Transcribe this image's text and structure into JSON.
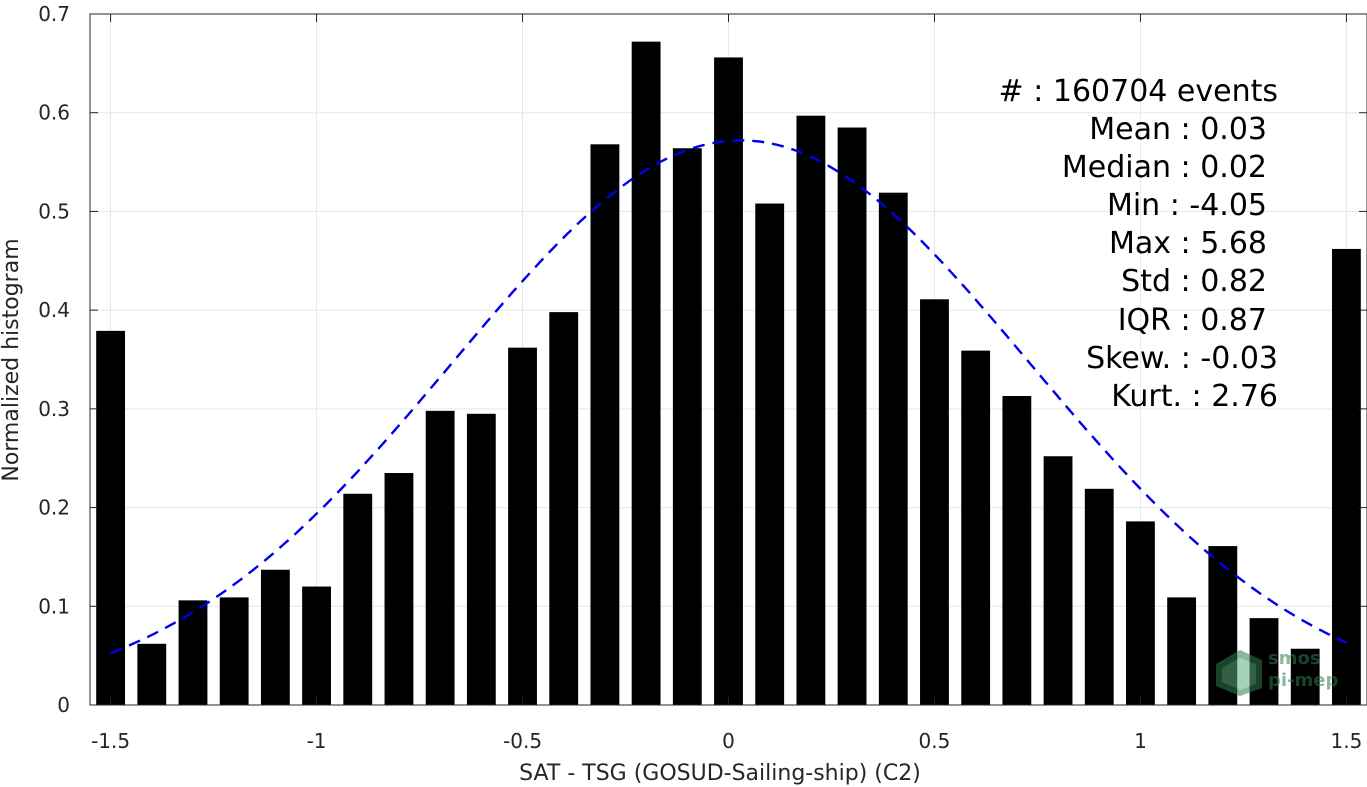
{
  "chart_data": {
    "type": "bar",
    "xlabel": "SAT - TSG (GOSUD-Sailing-ship) (C2)",
    "ylabel": "Normalized histogram",
    "xlim": [
      -1.55,
      1.55
    ],
    "ylim": [
      0,
      0.7
    ],
    "xticks": [
      -1.5,
      -1,
      -0.5,
      0,
      0.5,
      1,
      1.5
    ],
    "xtick_labels": [
      "-1.5",
      "-1",
      "-0.5",
      "0",
      "0.5",
      "1",
      "1.5"
    ],
    "yticks": [
      0,
      0.1,
      0.2,
      0.3,
      0.4,
      0.5,
      0.6,
      0.7
    ],
    "ytick_labels": [
      "0",
      "0.1",
      "0.2",
      "0.3",
      "0.4",
      "0.5",
      "0.6",
      "0.7"
    ],
    "grid": true,
    "bar_color": "#000000",
    "x": [
      -1.5,
      -1.4,
      -1.3,
      -1.2,
      -1.1,
      -1.0,
      -0.9,
      -0.8,
      -0.7,
      -0.6,
      -0.5,
      -0.4,
      -0.3,
      -0.2,
      -0.1,
      0.0,
      0.1,
      0.2,
      0.3,
      0.4,
      0.5,
      0.6,
      0.7,
      0.8,
      0.9,
      1.0,
      1.1,
      1.2,
      1.3,
      1.4,
      1.5
    ],
    "values": [
      0.379,
      0.062,
      0.106,
      0.109,
      0.137,
      0.12,
      0.214,
      0.235,
      0.298,
      0.295,
      0.362,
      0.398,
      0.568,
      0.672,
      0.564,
      0.656,
      0.508,
      0.597,
      0.585,
      0.519,
      0.411,
      0.359,
      0.313,
      0.252,
      0.219,
      0.186,
      0.109,
      0.161,
      0.088,
      0.057,
      0.462
    ],
    "fit_curve": {
      "style": "dashed",
      "color": "#0000ee",
      "mean": 0.03,
      "std": 0.7,
      "peak": 0.572,
      "x_range": [
        -1.5,
        1.5
      ]
    }
  },
  "stats": {
    "lines": [
      "#  : 160704 events",
      "Mean : 0.03",
      "Median : 0.02",
      "Min : -4.05",
      "Max : 5.68",
      "Std : 0.82",
      "IQR : 0.87",
      "Skew. : -0.03",
      "Kurt. : 2.76"
    ]
  },
  "logo": {
    "line1": "smos",
    "line2": "pi-mep",
    "icon": "smos-pimep-logo-icon",
    "color": "#2e7d4f"
  }
}
